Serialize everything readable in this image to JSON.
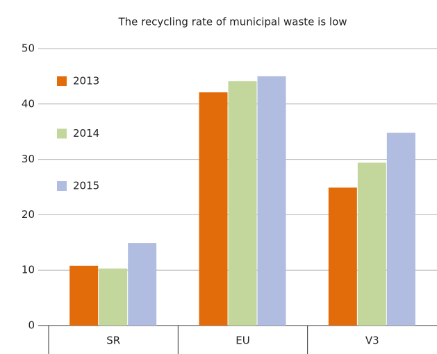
{
  "chart_data": {
    "type": "bar",
    "title": "The recycling rate of municipal waste is low",
    "categories": [
      "SR",
      "EU",
      "V3"
    ],
    "series": [
      {
        "name": "2013",
        "color": "#e36c0a",
        "values": [
          10.8,
          42.1,
          24.9
        ]
      },
      {
        "name": "2014",
        "color": "#c3d69b",
        "values": [
          10.3,
          44.1,
          29.4
        ]
      },
      {
        "name": "2015",
        "color": "#b0bde0",
        "values": [
          14.9,
          45.0,
          34.8
        ]
      }
    ],
    "ylim": [
      0,
      50
    ],
    "yticks": [
      0,
      10,
      20,
      30,
      40,
      50
    ],
    "grid": true,
    "legend": "top-left"
  }
}
